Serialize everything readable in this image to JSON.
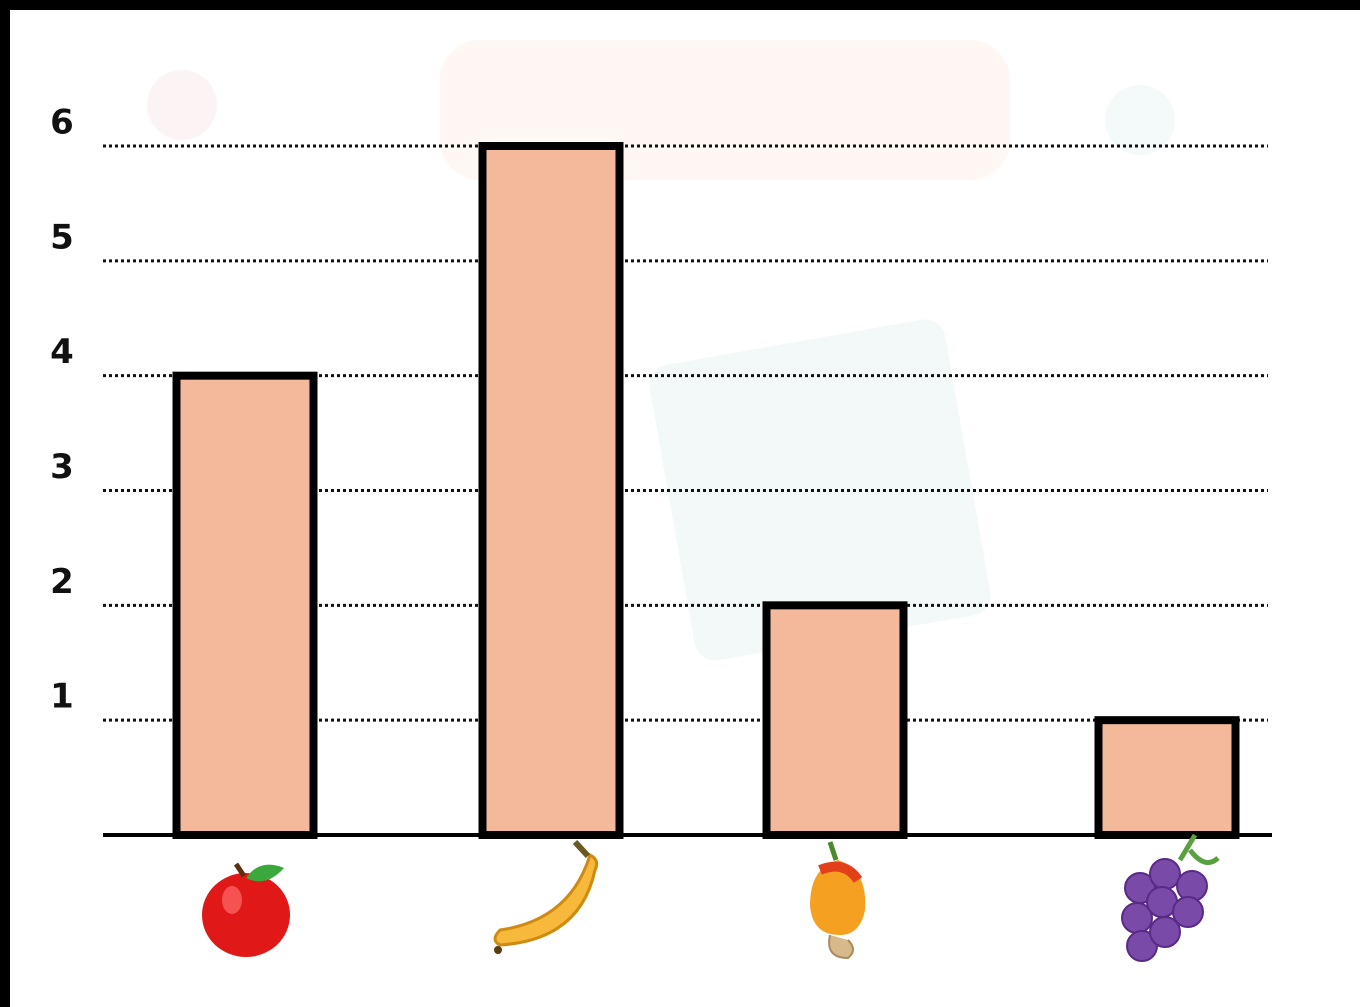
{
  "chart_data": {
    "type": "bar",
    "categories": [
      null,
      null,
      null,
      null
    ],
    "values": [
      4,
      6,
      2,
      1
    ],
    "color": "#f4b99b",
    "ylim": [
      0,
      6
    ],
    "yticks": [
      1,
      2,
      3,
      4,
      5,
      6
    ],
    "grid": true
  }
}
